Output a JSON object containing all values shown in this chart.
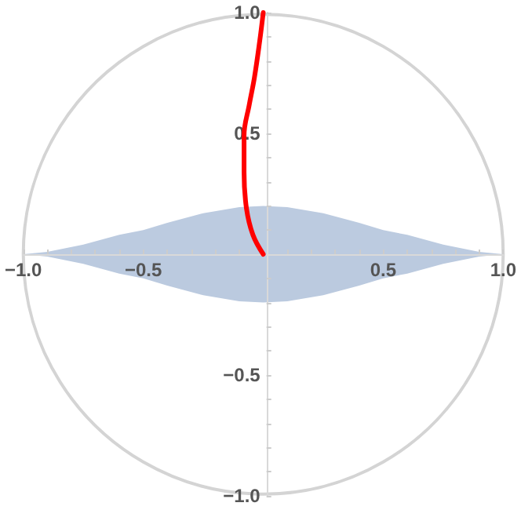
{
  "chart_data": {
    "type": "line",
    "series": [
      {
        "type": "area",
        "color": "#bccbe0",
        "x": [
          -1,
          -0.9,
          -0.75,
          -0.6,
          -0.5,
          -0.4,
          -0.25,
          -0.1,
          0,
          0.1,
          0.25,
          0.4,
          0.5,
          0.6,
          0.75,
          0.9,
          1
        ],
        "values": [
          0,
          0.01,
          0.04,
          0.08,
          0.1,
          0.13,
          0.17,
          0.195,
          0.2,
          0.195,
          0.17,
          0.13,
          0.1,
          0.08,
          0.04,
          0.01,
          0
        ]
      },
      {
        "type": "area",
        "color": "#bbcadf",
        "x": [
          -1,
          -0.9,
          -0.75,
          -0.6,
          -0.5,
          -0.4,
          -0.25,
          -0.1,
          0,
          0.1,
          0.25,
          0.4,
          0.5,
          0.6,
          0.75,
          0.9,
          1
        ],
        "values": [
          0,
          -0.01,
          -0.04,
          -0.08,
          -0.1,
          -0.13,
          -0.17,
          -0.195,
          -0.2,
          -0.195,
          -0.17,
          -0.13,
          -0.1,
          -0.08,
          -0.04,
          -0.01,
          0
        ]
      },
      {
        "color": "#ff0000",
        "x": [
          0,
          -0.043,
          -0.07,
          -0.08,
          -0.08,
          -0.058,
          -0.037,
          -0.015,
          0
        ],
        "values": [
          0,
          0.08,
          0.19,
          0.34,
          0.49,
          0.62,
          0.73,
          0.88,
          1
        ]
      }
    ],
    "marker": "none",
    "line_style": "solid",
    "grid": false,
    "xlim": [
      -1,
      1
    ],
    "ylim": [
      -1,
      1
    ],
    "xticks": [
      {
        "value": -1,
        "label": "−1.0"
      },
      {
        "value": -0.9,
        "label": null
      },
      {
        "value": -0.8,
        "label": null
      },
      {
        "value": -0.7,
        "label": null
      },
      {
        "value": -0.6,
        "label": null
      },
      {
        "value": -0.5,
        "label": "−0.5"
      },
      {
        "value": -0.4,
        "label": null
      },
      {
        "value": -0.3,
        "label": null
      },
      {
        "value": -0.2,
        "label": null
      },
      {
        "value": -0.1,
        "label": null
      },
      {
        "value": 0.1,
        "label": null
      },
      {
        "value": 0.2,
        "label": null
      },
      {
        "value": 0.3,
        "label": null
      },
      {
        "value": 0.4,
        "label": null
      },
      {
        "value": 0.5,
        "label": "0.5"
      },
      {
        "value": 0.6,
        "label": null
      },
      {
        "value": 0.7,
        "label": null
      },
      {
        "value": 0.8,
        "label": null
      },
      {
        "value": 0.9,
        "label": null
      },
      {
        "value": 1,
        "label": "1.0"
      }
    ],
    "yticks": [
      {
        "value": -1,
        "label": "−1.0"
      },
      {
        "value": -0.9,
        "label": null
      },
      {
        "value": -0.8,
        "label": null
      },
      {
        "value": -0.7,
        "label": null
      },
      {
        "value": -0.6,
        "label": null
      },
      {
        "value": -0.5,
        "label": "−0.5"
      },
      {
        "value": -0.4,
        "label": null
      },
      {
        "value": -0.3,
        "label": null
      },
      {
        "value": -0.2,
        "label": null
      },
      {
        "value": -0.1,
        "label": null
      },
      {
        "value": 0.1,
        "label": null
      },
      {
        "value": 0.2,
        "label": null
      },
      {
        "value": 0.3,
        "label": null
      },
      {
        "value": 0.4,
        "label": null
      },
      {
        "value": 0.5,
        "label": "0.5"
      },
      {
        "value": 0.6,
        "label": null
      },
      {
        "value": 0.7,
        "label": null
      },
      {
        "value": 0.8,
        "label": null
      },
      {
        "value": 0.9,
        "label": null
      },
      {
        "value": 1,
        "label": "1.0"
      }
    ]
  }
}
